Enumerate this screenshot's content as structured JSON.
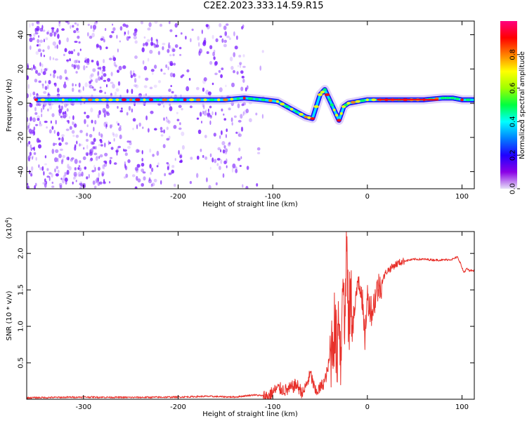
{
  "title": "C2E2.2023.333.14.59.R15",
  "colors": {
    "snr_line": "#e8302a",
    "spectrogram_scatter": "#7a1cff",
    "colorbar": [
      "#e6e0f7",
      "#8a00e6",
      "#2000ff",
      "#0080ff",
      "#00ffff",
      "#00ff40",
      "#a0ff00",
      "#ffff00",
      "#ff8000",
      "#ff0000",
      "#ff0080"
    ]
  },
  "chart_data": [
    {
      "type": "heatmap",
      "xlabel": "Height of straight line (km)",
      "ylabel": "Frequency (Hz)",
      "xlim": [
        -360,
        113
      ],
      "ylim": [
        -50,
        48
      ],
      "xticks": [
        -300,
        -200,
        -100,
        0,
        100
      ],
      "xtick_labels": [
        "-300",
        "-200",
        "-100",
        "0",
        "100"
      ],
      "yticks": [
        -40,
        -20,
        0,
        20,
        40
      ],
      "ytick_labels": [
        "-40",
        "-20",
        "0",
        "20",
        "40"
      ],
      "colorbar": {
        "label": "Normalized spectral amplitude",
        "range": [
          0,
          1
        ],
        "ticks": [
          0.0,
          0.2,
          0.4,
          0.6,
          0.8
        ],
        "tick_labels": [
          "0.0",
          "0.2",
          "0.4",
          "0.6",
          "0.8"
        ]
      },
      "ridge": {
        "x": [
          -350,
          -300,
          -250,
          -200,
          -150,
          -130,
          -110,
          -95,
          -85,
          -75,
          -65,
          -58,
          -50,
          -45,
          -40,
          -35,
          -30,
          -25,
          -20,
          -10,
          0,
          20,
          40,
          60,
          80,
          90,
          100,
          113
        ],
        "y": [
          2,
          2,
          2,
          2,
          2,
          3,
          2,
          1,
          -2,
          -5,
          -8,
          -9,
          5,
          8,
          2,
          -4,
          -10,
          -2,
          0,
          1,
          2,
          2,
          2,
          2,
          3,
          3,
          2,
          2
        ]
      }
    },
    {
      "type": "line",
      "xlabel": "Height of straight line (km)",
      "ylabel": "SNR (10 * v/v)",
      "scale_label": "(x10",
      "scale_exponent": "4",
      "xlim": [
        -360,
        113
      ],
      "ylim": [
        0,
        23000
      ],
      "xticks": [
        -300,
        -200,
        -100,
        0,
        100
      ],
      "xtick_labels": [
        "-300",
        "-200",
        "-100",
        "0",
        "100"
      ],
      "yticks": [
        5000,
        10000,
        15000,
        20000
      ],
      "ytick_labels": [
        "0.5",
        "1.0",
        "1.5",
        "2.0"
      ],
      "x": [
        -360,
        -300,
        -250,
        -200,
        -170,
        -140,
        -120,
        -105,
        -95,
        -85,
        -75,
        -68,
        -60,
        -55,
        -50,
        -45,
        -42,
        -38,
        -35,
        -32,
        -30,
        -28,
        -26,
        -24,
        -22,
        -20,
        -18,
        -15,
        -12,
        -10,
        -6,
        -3,
        0,
        5,
        10,
        15,
        20,
        25,
        30,
        35,
        40,
        50,
        60,
        70,
        80,
        90,
        95,
        98,
        100,
        102,
        105,
        108,
        113
      ],
      "y": [
        200,
        300,
        250,
        300,
        400,
        300,
        600,
        400,
        1500,
        1200,
        2000,
        800,
        3500,
        1000,
        1500,
        2500,
        4000,
        7000,
        10000,
        6000,
        14000,
        4000,
        20000,
        8000,
        23000,
        9000,
        14000,
        11000,
        13000,
        17000,
        15000,
        8000,
        14000,
        12000,
        15000,
        16000,
        17500,
        18000,
        18500,
        18800,
        19000,
        19200,
        19200,
        19100,
        19100,
        19200,
        19500,
        18800,
        18000,
        17400,
        17900,
        17600,
        17700
      ]
    }
  ]
}
